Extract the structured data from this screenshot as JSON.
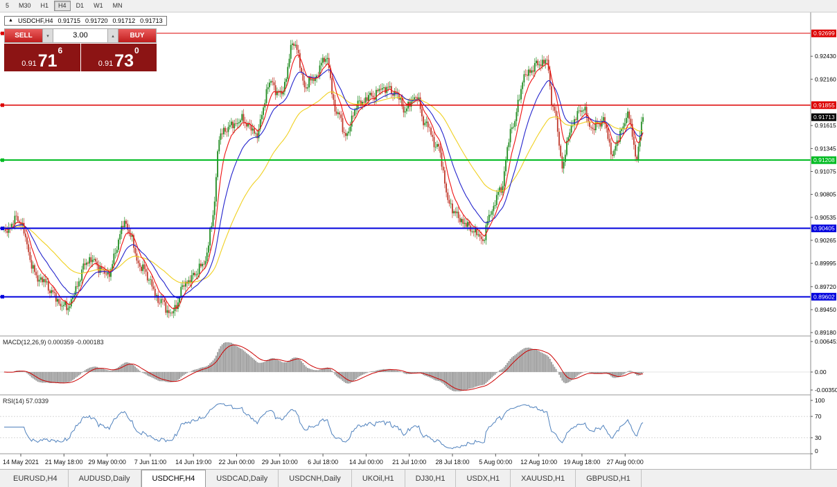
{
  "colors": {
    "up": "#1f8a1f",
    "down": "#c0392b",
    "ma_fast": "#ee1111",
    "ma_mid": "#2222cc",
    "ma_slow": "#f0d020",
    "level_red": "#dd0000",
    "level_green": "#00bb22",
    "level_blue": "#0000dd",
    "macd_hist": "#999999",
    "macd_signal": "#cc0000",
    "rsi_line": "#4f81bd",
    "tag_current": "#000000"
  },
  "toolbar": {
    "timeframes": [
      {
        "label": "5",
        "active": false
      },
      {
        "label": "M30",
        "active": false
      },
      {
        "label": "H1",
        "active": false
      },
      {
        "label": "H4",
        "active": true
      },
      {
        "label": "D1",
        "active": false
      },
      {
        "label": "W1",
        "active": false
      },
      {
        "label": "MN",
        "active": false
      }
    ]
  },
  "ohlc": {
    "symbol": "USDCHF,H4",
    "open": "0.91715",
    "high": "0.91720",
    "low": "0.91712",
    "close": "0.91713"
  },
  "trade_panel": {
    "sell_label": "SELL",
    "buy_label": "BUY",
    "volume": "3.00",
    "sell_price": {
      "prefix": "0.91",
      "big": "71",
      "sup": "6"
    },
    "buy_price": {
      "prefix": "0.91",
      "big": "73",
      "sup": "0"
    }
  },
  "chart_data": {
    "type": "candlestick",
    "symbol": "USDCHF",
    "timeframe": "H4",
    "current_price": 0.91713,
    "price_axis": {
      "max": 0.92945,
      "min": 0.8914,
      "ticks": [
        0.9243,
        0.9216,
        0.91615,
        0.91345,
        0.91075,
        0.90805,
        0.90535,
        0.90265,
        0.89995,
        0.8972,
        0.8945,
        0.8918
      ]
    },
    "levels": [
      {
        "price": 0.92699,
        "label": "0.92699",
        "color": "red",
        "width": 1
      },
      {
        "price": 0.91855,
        "label": "0.91855",
        "color": "red",
        "width": 1.5
      },
      {
        "price": 0.91208,
        "label": "0.91208",
        "color": "green",
        "width": 2
      },
      {
        "price": 0.90405,
        "label": "0.90405",
        "color": "blue",
        "width": 2
      },
      {
        "price": 0.89602,
        "label": "0.89602",
        "color": "blue",
        "width": 2
      }
    ],
    "candle_count": 420,
    "anchors": [
      [
        0.0,
        0.9036
      ],
      [
        0.021,
        0.9052
      ],
      [
        0.053,
        0.8982
      ],
      [
        0.097,
        0.8948
      ],
      [
        0.134,
        0.9004
      ],
      [
        0.162,
        0.8987
      ],
      [
        0.189,
        0.9046
      ],
      [
        0.216,
        0.8993
      ],
      [
        0.245,
        0.8955
      ],
      [
        0.261,
        0.894
      ],
      [
        0.286,
        0.8978
      ],
      [
        0.313,
        0.8998
      ],
      [
        0.324,
        0.904
      ],
      [
        0.338,
        0.915
      ],
      [
        0.351,
        0.916
      ],
      [
        0.373,
        0.9168
      ],
      [
        0.395,
        0.9152
      ],
      [
        0.416,
        0.9212
      ],
      [
        0.433,
        0.9198
      ],
      [
        0.454,
        0.926
      ],
      [
        0.471,
        0.9208
      ],
      [
        0.487,
        0.9218
      ],
      [
        0.503,
        0.9243
      ],
      [
        0.52,
        0.9178
      ],
      [
        0.536,
        0.915
      ],
      [
        0.552,
        0.9186
      ],
      [
        0.574,
        0.9196
      ],
      [
        0.595,
        0.9206
      ],
      [
        0.612,
        0.92
      ],
      [
        0.628,
        0.918
      ],
      [
        0.644,
        0.9196
      ],
      [
        0.66,
        0.9163
      ],
      [
        0.679,
        0.9135
      ],
      [
        0.698,
        0.9067
      ],
      [
        0.715,
        0.905
      ],
      [
        0.731,
        0.904
      ],
      [
        0.749,
        0.9028
      ],
      [
        0.763,
        0.9062
      ],
      [
        0.776,
        0.9085
      ],
      [
        0.796,
        0.9162
      ],
      [
        0.815,
        0.922
      ],
      [
        0.834,
        0.9233
      ],
      [
        0.848,
        0.9238
      ],
      [
        0.861,
        0.9178
      ],
      [
        0.874,
        0.9116
      ],
      [
        0.888,
        0.9162
      ],
      [
        0.904,
        0.9182
      ],
      [
        0.921,
        0.9158
      ],
      [
        0.937,
        0.9168
      ],
      [
        0.953,
        0.9128
      ],
      [
        0.967,
        0.9158
      ],
      [
        0.978,
        0.9175
      ],
      [
        0.989,
        0.9122
      ],
      [
        1.0,
        0.91713
      ]
    ],
    "moving_averages": [
      {
        "period": 8,
        "color_key": "ma_fast"
      },
      {
        "period": 21,
        "color_key": "ma_mid"
      },
      {
        "period": 55,
        "color_key": "ma_slow"
      }
    ],
    "indicators": {
      "macd": {
        "label": "MACD(12,26,9)",
        "value_main": "0.000359",
        "value_signal": "-0.000183",
        "axis_top": "0.006451",
        "axis_zero": "0.00",
        "axis_bottom": "-0.00350",
        "fast": 12,
        "slow": 26,
        "signal": 9
      },
      "rsi": {
        "label": "RSI(14)",
        "value": "57.0339",
        "period": 14,
        "levels": [
          30,
          70
        ],
        "axis": [
          "100",
          "70",
          "30",
          "0"
        ]
      }
    },
    "x_labels": [
      "14 May 2021",
      "21 May 18:00",
      "29 May 00:00",
      "7 Jun 11:00",
      "14 Jun 19:00",
      "22 Jun 00:00",
      "29 Jun 10:00",
      "6 Jul 18:00",
      "14 Jul 00:00",
      "21 Jul 10:00",
      "28 Jul 18:00",
      "5 Aug 00:00",
      "12 Aug 10:00",
      "19 Aug 18:00",
      "27 Aug 00:00"
    ]
  },
  "tabs": [
    {
      "label": "EURUSD,H4",
      "active": false
    },
    {
      "label": "AUDUSD,Daily",
      "active": false
    },
    {
      "label": "USDCHF,H4",
      "active": true
    },
    {
      "label": "USDCAD,Daily",
      "active": false
    },
    {
      "label": "USDCNH,Daily",
      "active": false
    },
    {
      "label": "UKOil,H1",
      "active": false
    },
    {
      "label": "DJ30,H1",
      "active": false
    },
    {
      "label": "USDX,H1",
      "active": false
    },
    {
      "label": "XAUUSD,H1",
      "active": false
    },
    {
      "label": "GBPUSD,H1",
      "active": false
    }
  ]
}
